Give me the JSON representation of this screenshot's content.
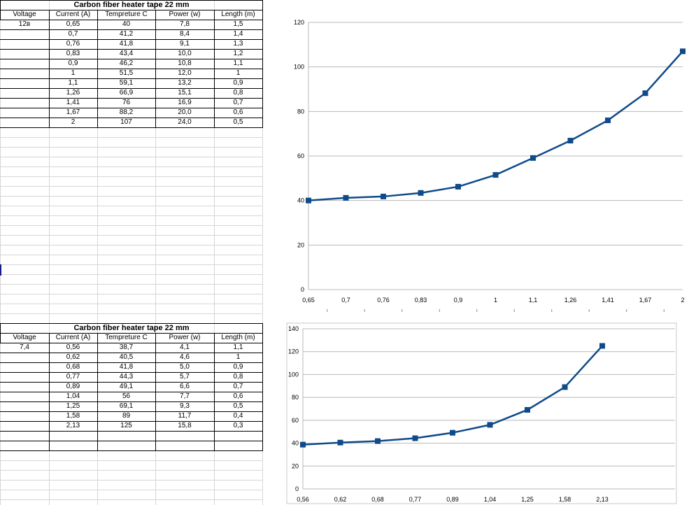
{
  "tables": [
    {
      "title": "Carbon fiber heater tape 22 mm",
      "headers": [
        "Voltage",
        "Current (A)",
        "Tempreture C",
        "Power (w)",
        "Length (m)"
      ],
      "rows": [
        [
          "12в",
          "0,65",
          "40",
          "7,8",
          "1,5"
        ],
        [
          "",
          "0,7",
          "41,2",
          "8,4",
          "1,4"
        ],
        [
          "",
          "0,76",
          "41,8",
          "9,1",
          "1,3"
        ],
        [
          "",
          "0,83",
          "43,4",
          "10,0",
          "1,2"
        ],
        [
          "",
          "0,9",
          "46,2",
          "10,8",
          "1,1"
        ],
        [
          "",
          "1",
          "51,5",
          "12,0",
          "1"
        ],
        [
          "",
          "1,1",
          "59,1",
          "13,2",
          "0,9"
        ],
        [
          "",
          "1,26",
          "66,9",
          "15,1",
          "0,8"
        ],
        [
          "",
          "1,41",
          "76",
          "16,9",
          "0,7"
        ],
        [
          "",
          "1,67",
          "88,2",
          "20,0",
          "0,6"
        ],
        [
          "",
          "2",
          "107",
          "24,0",
          "0,5"
        ]
      ]
    },
    {
      "title": "Carbon fiber heater tape 22  mm",
      "headers": [
        "Voltage",
        "Current (A)",
        "Tempreture C",
        "Power (w)",
        "Length (m)"
      ],
      "rows": [
        [
          "7,4",
          "0,56",
          "38,7",
          "4,1",
          "1,1"
        ],
        [
          "",
          "0,62",
          "40,5",
          "4,6",
          "1"
        ],
        [
          "",
          "0,68",
          "41,8",
          "5,0",
          "0,9"
        ],
        [
          "",
          "0,77",
          "44,3",
          "5,7",
          "0,8"
        ],
        [
          "",
          "0,89",
          "49,1",
          "6,6",
          "0,7"
        ],
        [
          "",
          "1,04",
          "56",
          "7,7",
          "0,6"
        ],
        [
          "",
          "1,25",
          "69,1",
          "9,3",
          "0,5"
        ],
        [
          "",
          "1,58",
          "89",
          "11,7",
          "0,4"
        ],
        [
          "",
          "2,13",
          "125",
          "15,8",
          "0,3"
        ],
        [
          "",
          "",
          "",
          "",
          ""
        ],
        [
          "",
          "",
          "",
          "",
          ""
        ]
      ]
    }
  ],
  "chart_data": [
    {
      "type": "line",
      "categories": [
        "0,65",
        "0,7",
        "0,76",
        "0,83",
        "0,9",
        "1",
        "1,1",
        "1,26",
        "1,41",
        "1,67",
        "2"
      ],
      "series": [
        {
          "values": [
            40,
            41.2,
            41.8,
            43.4,
            46.2,
            51.5,
            59.1,
            66.9,
            76,
            88.2,
            107
          ]
        }
      ],
      "ylim": [
        0,
        120
      ],
      "yticks": [
        0,
        20,
        40,
        60,
        80,
        100,
        120
      ],
      "grid": true,
      "color": "#0f4a8a"
    },
    {
      "type": "line",
      "categories": [
        "0,56",
        "0,62",
        "0,68",
        "0,77",
        "0,89",
        "1,04",
        "1,25",
        "1,58",
        "2,13"
      ],
      "series": [
        {
          "values": [
            38.7,
            40.5,
            41.8,
            44.3,
            49.1,
            56,
            69.1,
            89,
            125
          ]
        }
      ],
      "ylim": [
        0,
        140
      ],
      "yticks": [
        0,
        20,
        40,
        60,
        80,
        100,
        120,
        140
      ],
      "grid": true,
      "color": "#0f4a8a"
    }
  ]
}
